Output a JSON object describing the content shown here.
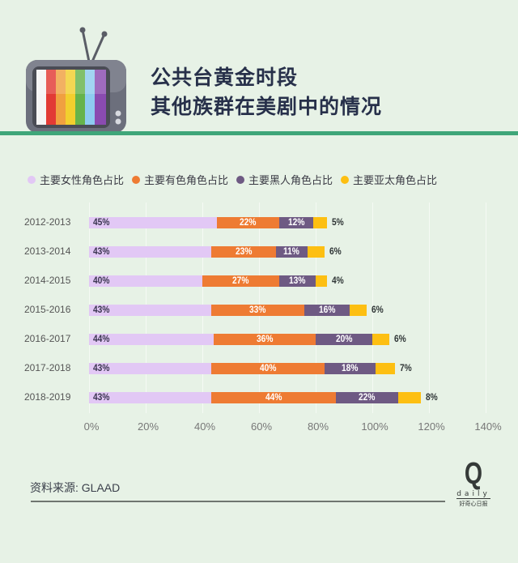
{
  "header": {
    "title_line1": "公共台黄金时段",
    "title_line2": "其他族群在美剧中的情况",
    "tv_icon": "retro-tv-color-bars-icon",
    "rule_color": "#3fa679"
  },
  "legend": [
    {
      "label": "主要女性角色占比",
      "color": "#e2c8f5"
    },
    {
      "label": "主要有色角色占比",
      "color": "#ee7b33"
    },
    {
      "label": "主要黑人角色占比",
      "color": "#6e5a83"
    },
    {
      "label": "主要亚太角色占比",
      "color": "#fdbf12"
    }
  ],
  "rows": [
    {
      "label": "2012-2013",
      "values": [
        "45%",
        "22%",
        "12%",
        "5%"
      ]
    },
    {
      "label": "2013-2014",
      "values": [
        "43%",
        "23%",
        "11%",
        "6%"
      ]
    },
    {
      "label": "2014-2015",
      "values": [
        "40%",
        "27%",
        "13%",
        "4%"
      ]
    },
    {
      "label": "2015-2016",
      "values": [
        "43%",
        "33%",
        "16%",
        "6%"
      ]
    },
    {
      "label": "2016-2017",
      "values": [
        "44%",
        "36%",
        "20%",
        "6%"
      ]
    },
    {
      "label": "2017-2018",
      "values": [
        "43%",
        "40%",
        "18%",
        "7%"
      ]
    },
    {
      "label": "2018-2019",
      "values": [
        "43%",
        "44%",
        "22%",
        "8%"
      ]
    }
  ],
  "xaxis": {
    "ticks": [
      "0%",
      "20%",
      "40%",
      "60%",
      "80%",
      "100%",
      "120%",
      "140%"
    ]
  },
  "footer": {
    "source": "资料来源: GLAAD",
    "logo_letter": "Q",
    "logo_word": "daily",
    "logo_cn": "好奇心日报"
  },
  "chart_data": {
    "type": "bar",
    "orientation": "horizontal",
    "stacked": true,
    "title": "公共台黄金时段 其他族群在美剧中的情况",
    "categories": [
      "2012-2013",
      "2013-2014",
      "2014-2015",
      "2015-2016",
      "2016-2017",
      "2017-2018",
      "2018-2019"
    ],
    "series": [
      {
        "name": "主要女性角色占比",
        "color": "#e2c8f5",
        "values": [
          45,
          43,
          40,
          43,
          44,
          43,
          43
        ]
      },
      {
        "name": "主要有色角色占比",
        "color": "#ee7b33",
        "values": [
          22,
          23,
          27,
          33,
          36,
          40,
          44
        ]
      },
      {
        "name": "主要黑人角色占比",
        "color": "#6e5a83",
        "values": [
          12,
          11,
          13,
          16,
          20,
          18,
          22
        ]
      },
      {
        "name": "主要亚太角色占比",
        "color": "#fdbf12",
        "values": [
          5,
          6,
          4,
          6,
          6,
          7,
          8
        ]
      }
    ],
    "xlabel": "",
    "ylabel": "",
    "xlim": [
      0,
      140
    ],
    "xticks": [
      "0%",
      "20%",
      "40%",
      "60%",
      "80%",
      "100%",
      "120%",
      "140%"
    ],
    "grid": true,
    "legend_position": "top",
    "source": "资料来源: GLAAD"
  }
}
